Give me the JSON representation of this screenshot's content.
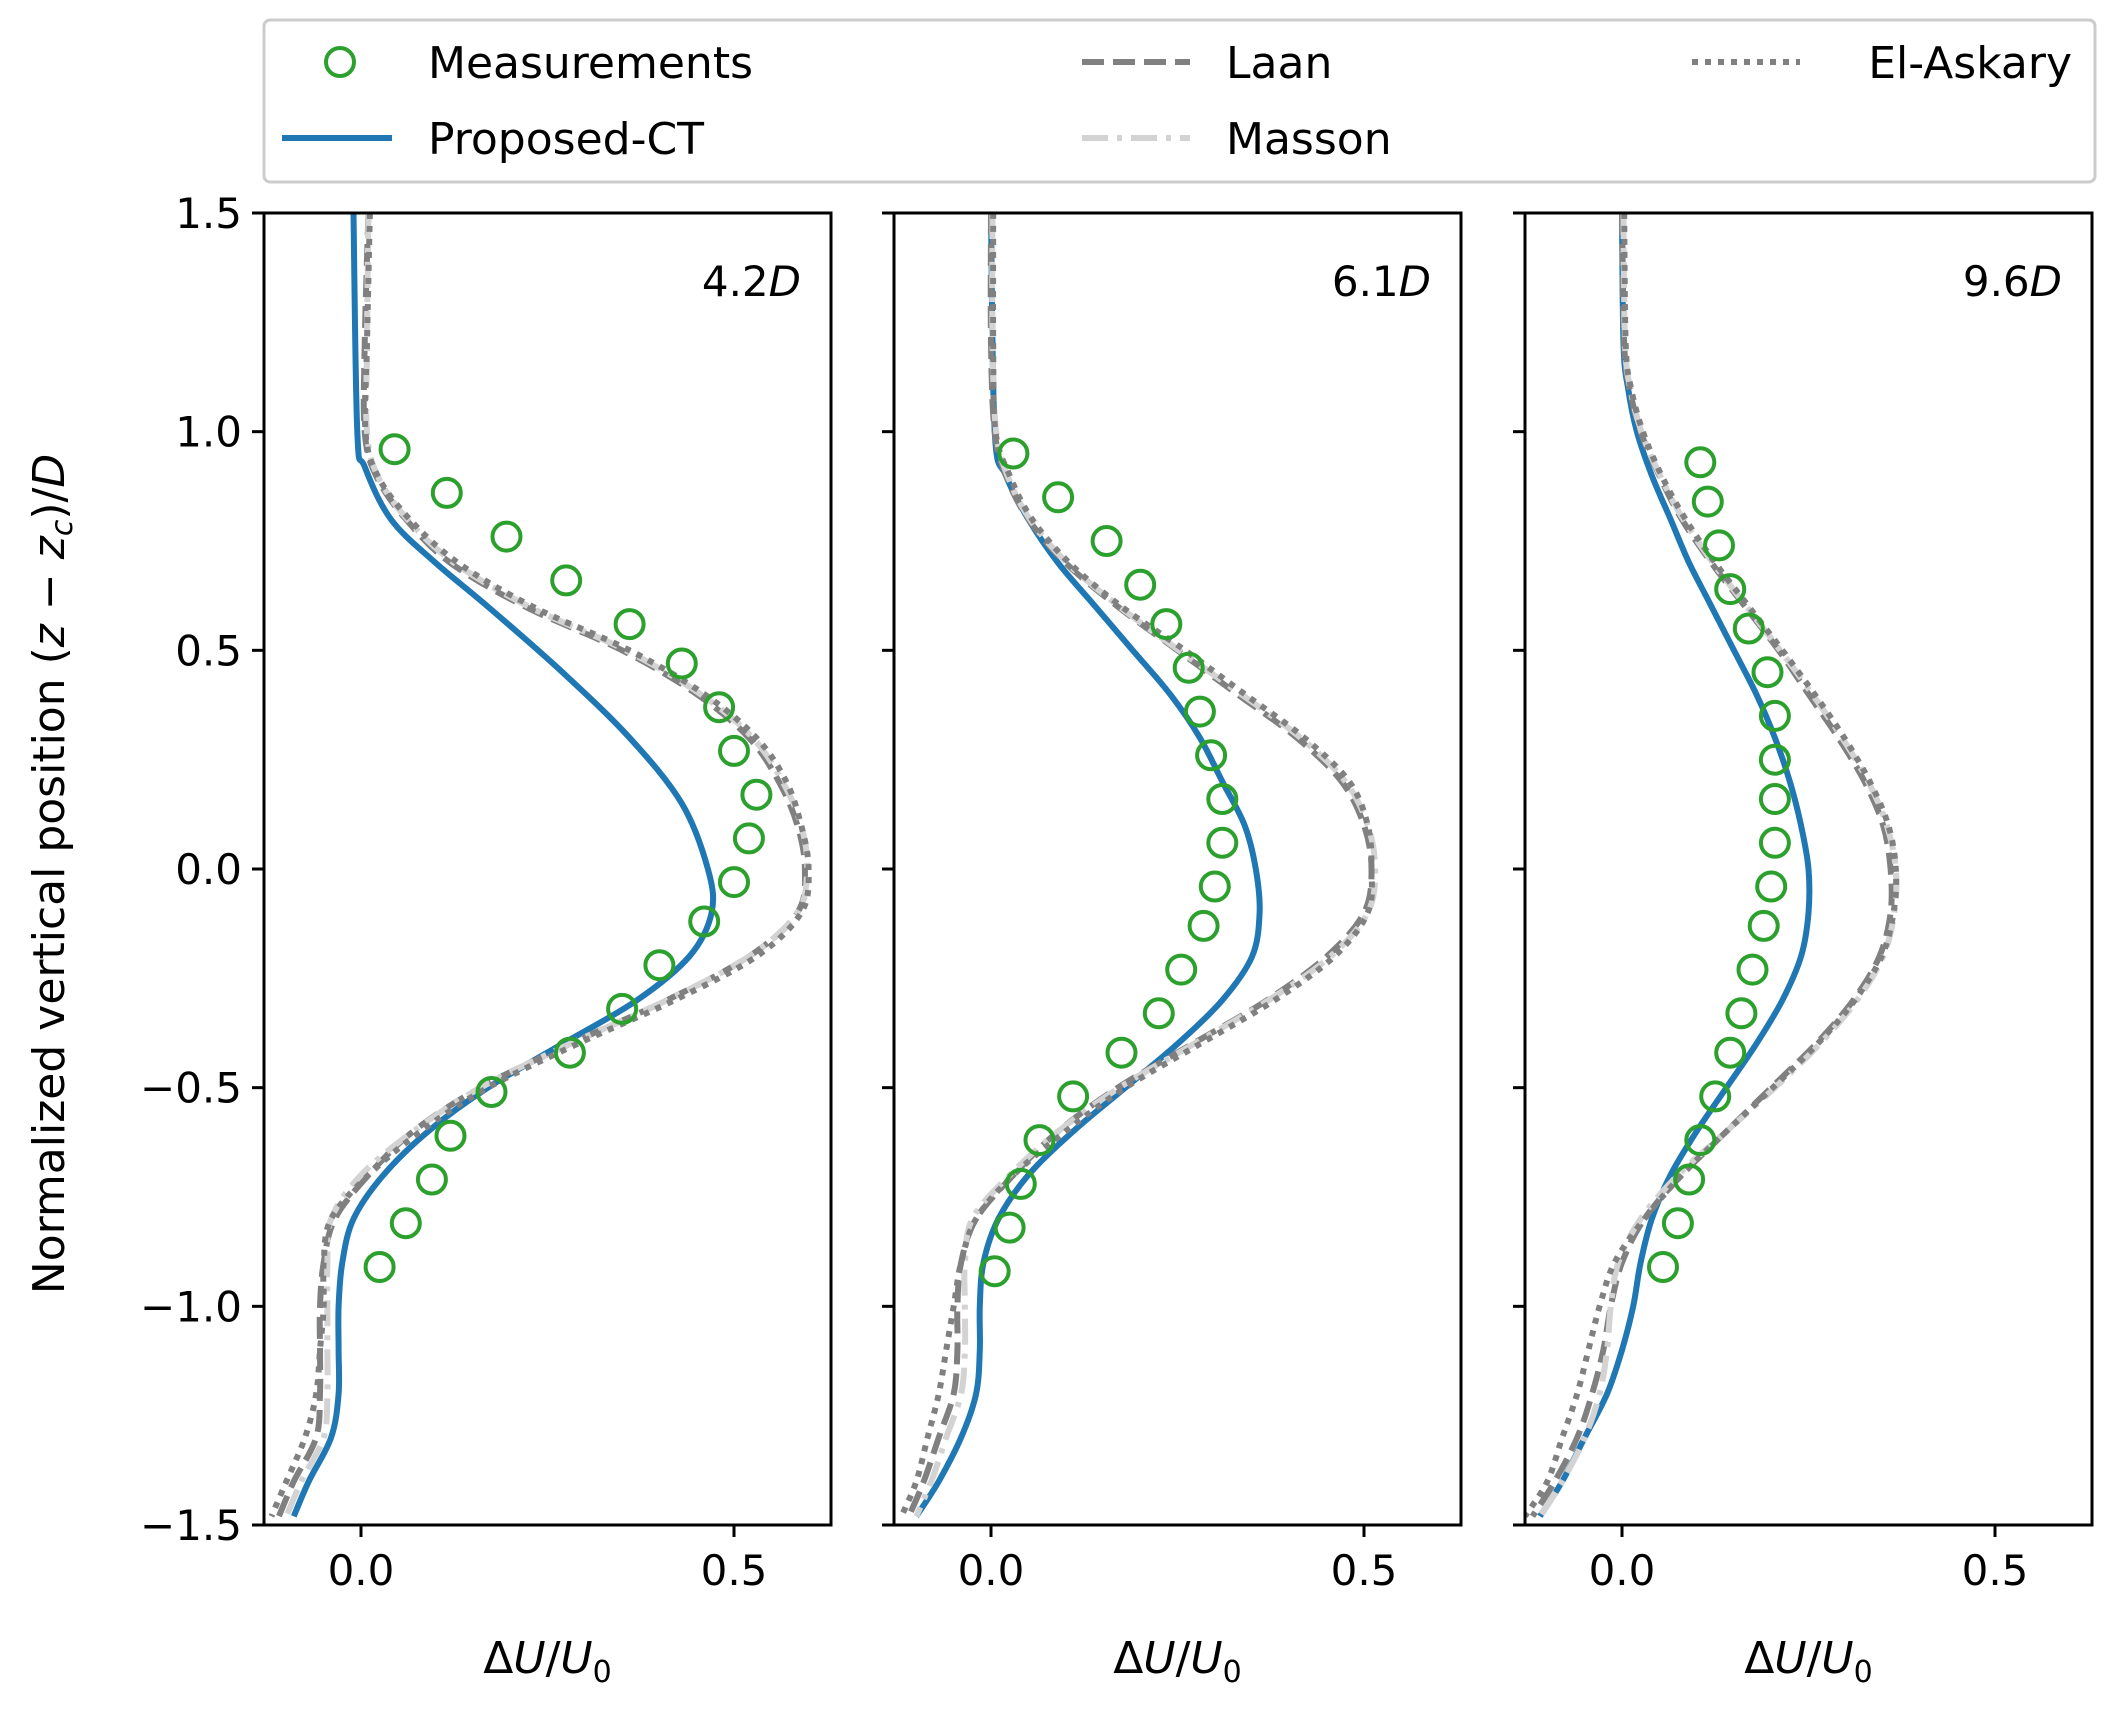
{
  "chart_data": {
    "type": "line",
    "ylabel": "Normalized vertical position $(z-z_c)/D$",
    "xlabel": "ΔU/U₀",
    "ylim": [
      -1.5,
      1.5
    ],
    "xlim": [
      -0.13,
      0.63
    ],
    "yticks": [
      1.5,
      1.0,
      0.5,
      0.0,
      -0.5,
      -1.0,
      -1.5
    ],
    "ytick_labels": [
      "1.5",
      "1.0",
      "0.5",
      "0.0",
      "−0.5",
      "−1.0",
      "−1.5"
    ],
    "xticks": [
      0.0,
      0.5
    ],
    "xtick_labels": [
      "0.0",
      "0.5"
    ],
    "legend": {
      "position": "top",
      "entries": [
        {
          "key": "measurements",
          "label": "Measurements",
          "color": "#2ca02c",
          "style": "circle"
        },
        {
          "key": "proposed",
          "label": "Proposed-CT",
          "color": "#1f77b4",
          "style": "solid"
        },
        {
          "key": "laan",
          "label": "Laan",
          "color": "#808080",
          "style": "dashed"
        },
        {
          "key": "masson",
          "label": "Masson",
          "color": "#d3d3d3",
          "style": "dashdot"
        },
        {
          "key": "elaskary",
          "label": "El-Askary",
          "color": "#808080",
          "style": "dotted"
        }
      ]
    },
    "panels": [
      {
        "label_num": "4.2",
        "label_var": "D",
        "measurements": {
          "x": [
            0.045,
            0.115,
            0.195,
            0.275,
            0.36,
            0.43,
            0.48,
            0.5,
            0.53,
            0.52,
            0.5,
            0.46,
            0.4,
            0.35,
            0.28,
            0.175,
            0.12,
            0.095,
            0.06,
            0.025
          ],
          "y": [
            0.96,
            0.86,
            0.76,
            0.66,
            0.56,
            0.47,
            0.37,
            0.27,
            0.17,
            0.07,
            -0.03,
            -0.12,
            -0.22,
            -0.32,
            -0.42,
            -0.51,
            -0.61,
            -0.71,
            -0.81,
            -0.91
          ]
        },
        "proposed": {
          "y": [
            1.5,
            1.0,
            0.92,
            0.8,
            0.7,
            0.6,
            0.45,
            0.3,
            0.15,
            0.0,
            -0.1,
            -0.2,
            -0.3,
            -0.4,
            -0.5,
            -0.6,
            -0.7,
            -0.8,
            -0.9,
            -1.0,
            -1.1,
            -1.2,
            -1.3,
            -1.4,
            -1.48
          ],
          "x": [
            -0.01,
            -0.005,
            0.005,
            0.04,
            0.1,
            0.17,
            0.27,
            0.36,
            0.43,
            0.465,
            0.47,
            0.44,
            0.37,
            0.27,
            0.17,
            0.09,
            0.03,
            -0.01,
            -0.025,
            -0.03,
            -0.03,
            -0.03,
            -0.04,
            -0.07,
            -0.09
          ]
        },
        "laan": {
          "y": [
            1.5,
            1.2,
            1.0,
            0.9,
            0.8,
            0.7,
            0.6,
            0.5,
            0.4,
            0.3,
            0.2,
            0.1,
            0.0,
            -0.1,
            -0.2,
            -0.3,
            -0.4,
            -0.5,
            -0.6,
            -0.7,
            -0.8,
            -0.9,
            -1.0,
            -1.1,
            -1.2,
            -1.3,
            -1.4,
            -1.48
          ],
          "x": [
            0.01,
            0.005,
            0.005,
            0.02,
            0.06,
            0.12,
            0.22,
            0.35,
            0.45,
            0.52,
            0.56,
            0.585,
            0.595,
            0.585,
            0.52,
            0.41,
            0.28,
            0.16,
            0.07,
            0.01,
            -0.035,
            -0.05,
            -0.055,
            -0.055,
            -0.055,
            -0.06,
            -0.09,
            -0.11
          ]
        },
        "masson": {
          "y": [
            1.5,
            1.2,
            1.0,
            0.9,
            0.8,
            0.7,
            0.6,
            0.5,
            0.4,
            0.3,
            0.2,
            0.1,
            0.0,
            -0.1,
            -0.2,
            -0.3,
            -0.4,
            -0.5,
            -0.6,
            -0.7,
            -0.8,
            -0.9,
            -1.0,
            -1.1,
            -1.2,
            -1.3,
            -1.4,
            -1.48
          ],
          "x": [
            0.01,
            0.008,
            0.008,
            0.022,
            0.062,
            0.125,
            0.225,
            0.355,
            0.455,
            0.525,
            0.565,
            0.59,
            0.598,
            0.585,
            0.52,
            0.41,
            0.28,
            0.16,
            0.07,
            0.0,
            -0.04,
            -0.045,
            -0.045,
            -0.045,
            -0.045,
            -0.05,
            -0.08,
            -0.1
          ]
        },
        "elaskary": {
          "y": [
            1.5,
            1.2,
            1.0,
            0.9,
            0.8,
            0.7,
            0.6,
            0.5,
            0.4,
            0.3,
            0.2,
            0.1,
            0.0,
            -0.1,
            -0.2,
            -0.3,
            -0.4,
            -0.5,
            -0.6,
            -0.7,
            -0.8,
            -0.9,
            -1.0,
            -1.1,
            -1.2,
            -1.3,
            -1.4,
            -1.48
          ],
          "x": [
            0.012,
            0.008,
            0.006,
            0.022,
            0.065,
            0.13,
            0.23,
            0.36,
            0.46,
            0.53,
            0.57,
            0.59,
            0.6,
            0.59,
            0.53,
            0.42,
            0.29,
            0.17,
            0.08,
            0.01,
            -0.04,
            -0.05,
            -0.05,
            -0.055,
            -0.06,
            -0.075,
            -0.1,
            -0.12
          ]
        }
      },
      {
        "label_num": "6.1",
        "label_var": "D",
        "measurements": {
          "x": [
            0.03,
            0.09,
            0.155,
            0.2,
            0.235,
            0.265,
            0.28,
            0.295,
            0.31,
            0.31,
            0.3,
            0.285,
            0.255,
            0.225,
            0.175,
            0.11,
            0.065,
            0.04,
            0.025,
            0.005
          ],
          "y": [
            0.95,
            0.85,
            0.75,
            0.65,
            0.56,
            0.46,
            0.36,
            0.26,
            0.16,
            0.06,
            -0.04,
            -0.13,
            -0.23,
            -0.33,
            -0.42,
            -0.52,
            -0.62,
            -0.72,
            -0.82,
            -0.92
          ]
        },
        "proposed": {
          "y": [
            1.5,
            1.0,
            0.9,
            0.8,
            0.7,
            0.6,
            0.5,
            0.4,
            0.3,
            0.2,
            0.1,
            0.0,
            -0.1,
            -0.2,
            -0.3,
            -0.4,
            -0.5,
            -0.6,
            -0.7,
            -0.8,
            -0.9,
            -1.0,
            -1.1,
            -1.2,
            -1.3,
            -1.4,
            -1.48
          ],
          "x": [
            0.0,
            0.005,
            0.02,
            0.05,
            0.09,
            0.14,
            0.19,
            0.24,
            0.28,
            0.31,
            0.34,
            0.355,
            0.36,
            0.35,
            0.31,
            0.25,
            0.18,
            0.11,
            0.05,
            0.01,
            -0.01,
            -0.015,
            -0.015,
            -0.02,
            -0.04,
            -0.07,
            -0.1
          ]
        },
        "laan": {
          "y": [
            1.5,
            1.2,
            1.0,
            0.9,
            0.8,
            0.7,
            0.6,
            0.5,
            0.4,
            0.3,
            0.2,
            0.1,
            0.0,
            -0.1,
            -0.2,
            -0.3,
            -0.4,
            -0.5,
            -0.6,
            -0.7,
            -0.8,
            -0.9,
            -1.0,
            -1.1,
            -1.2,
            -1.3,
            -1.4,
            -1.48
          ],
          "x": [
            0.0,
            0.0,
            0.005,
            0.02,
            0.05,
            0.1,
            0.17,
            0.25,
            0.33,
            0.41,
            0.47,
            0.5,
            0.51,
            0.5,
            0.45,
            0.37,
            0.27,
            0.17,
            0.09,
            0.03,
            -0.02,
            -0.04,
            -0.045,
            -0.045,
            -0.05,
            -0.07,
            -0.09,
            -0.11
          ]
        },
        "masson": {
          "y": [
            1.5,
            1.2,
            1.0,
            0.9,
            0.8,
            0.7,
            0.6,
            0.5,
            0.4,
            0.3,
            0.2,
            0.1,
            0.0,
            -0.1,
            -0.2,
            -0.3,
            -0.4,
            -0.5,
            -0.6,
            -0.7,
            -0.8,
            -0.9,
            -1.0,
            -1.1,
            -1.2,
            -1.3,
            -1.4,
            -1.48
          ],
          "x": [
            0.002,
            0.002,
            0.007,
            0.022,
            0.052,
            0.102,
            0.172,
            0.252,
            0.335,
            0.415,
            0.475,
            0.505,
            0.515,
            0.505,
            0.455,
            0.372,
            0.272,
            0.172,
            0.09,
            0.025,
            -0.025,
            -0.035,
            -0.035,
            -0.035,
            -0.04,
            -0.06,
            -0.08,
            -0.1
          ]
        },
        "elaskary": {
          "y": [
            1.5,
            1.2,
            1.0,
            0.9,
            0.8,
            0.7,
            0.6,
            0.5,
            0.4,
            0.3,
            0.2,
            0.1,
            0.0,
            -0.1,
            -0.2,
            -0.3,
            -0.4,
            -0.5,
            -0.6,
            -0.7,
            -0.8,
            -0.9,
            -1.0,
            -1.1,
            -1.2,
            -1.3,
            -1.4,
            -1.48
          ],
          "x": [
            0.003,
            0.003,
            0.006,
            0.025,
            0.055,
            0.105,
            0.175,
            0.26,
            0.34,
            0.42,
            0.48,
            0.505,
            0.51,
            0.505,
            0.46,
            0.38,
            0.28,
            0.18,
            0.1,
            0.03,
            -0.02,
            -0.04,
            -0.05,
            -0.06,
            -0.07,
            -0.085,
            -0.1,
            -0.12
          ]
        }
      },
      {
        "label_num": "9.6",
        "label_var": "D",
        "measurements": {
          "x": [
            0.105,
            0.115,
            0.13,
            0.145,
            0.17,
            0.195,
            0.205,
            0.205,
            0.205,
            0.205,
            0.2,
            0.19,
            0.175,
            0.16,
            0.145,
            0.125,
            0.105,
            0.09,
            0.075,
            0.055
          ],
          "y": [
            0.93,
            0.84,
            0.74,
            0.64,
            0.55,
            0.45,
            0.35,
            0.25,
            0.16,
            0.06,
            -0.04,
            -0.13,
            -0.23,
            -0.33,
            -0.42,
            -0.52,
            -0.62,
            -0.71,
            -0.81,
            -0.91
          ]
        },
        "proposed": {
          "y": [
            1.5,
            1.2,
            1.1,
            1.0,
            0.9,
            0.8,
            0.7,
            0.6,
            0.5,
            0.4,
            0.3,
            0.2,
            0.1,
            0.0,
            -0.1,
            -0.2,
            -0.3,
            -0.4,
            -0.5,
            -0.6,
            -0.7,
            -0.8,
            -0.9,
            -1.0,
            -1.1,
            -1.2,
            -1.3,
            -1.4,
            -1.48
          ],
          "x": [
            0.0,
            0.002,
            0.008,
            0.02,
            0.04,
            0.065,
            0.09,
            0.12,
            0.15,
            0.18,
            0.205,
            0.225,
            0.24,
            0.25,
            0.25,
            0.24,
            0.215,
            0.18,
            0.14,
            0.1,
            0.065,
            0.04,
            0.025,
            0.015,
            0.0,
            -0.02,
            -0.05,
            -0.08,
            -0.11
          ]
        },
        "laan": {
          "y": [
            1.5,
            1.2,
            1.1,
            1.0,
            0.9,
            0.8,
            0.7,
            0.6,
            0.5,
            0.4,
            0.3,
            0.2,
            0.1,
            0.0,
            -0.1,
            -0.2,
            -0.3,
            -0.4,
            -0.5,
            -0.6,
            -0.7,
            -0.8,
            -0.9,
            -1.0,
            -1.1,
            -1.2,
            -1.3,
            -1.4,
            -1.48
          ],
          "x": [
            0.0,
            0.003,
            0.01,
            0.025,
            0.05,
            0.08,
            0.12,
            0.165,
            0.21,
            0.25,
            0.29,
            0.325,
            0.35,
            0.36,
            0.36,
            0.345,
            0.31,
            0.26,
            0.2,
            0.14,
            0.08,
            0.03,
            0.0,
            -0.015,
            -0.025,
            -0.04,
            -0.06,
            -0.09,
            -0.12
          ]
        },
        "masson": {
          "y": [
            1.5,
            1.2,
            1.1,
            1.0,
            0.9,
            0.8,
            0.7,
            0.6,
            0.5,
            0.4,
            0.3,
            0.2,
            0.1,
            0.0,
            -0.1,
            -0.2,
            -0.3,
            -0.4,
            -0.5,
            -0.6,
            -0.7,
            -0.8,
            -0.9,
            -1.0,
            -1.1,
            -1.2,
            -1.3,
            -1.4,
            -1.48
          ],
          "x": [
            0.002,
            0.004,
            0.011,
            0.026,
            0.051,
            0.082,
            0.122,
            0.167,
            0.212,
            0.255,
            0.295,
            0.33,
            0.355,
            0.367,
            0.365,
            0.35,
            0.315,
            0.265,
            0.205,
            0.14,
            0.075,
            0.025,
            -0.005,
            -0.015,
            -0.02,
            -0.03,
            -0.05,
            -0.08,
            -0.11
          ]
        },
        "elaskary": {
          "y": [
            1.5,
            1.2,
            1.1,
            1.0,
            0.9,
            0.8,
            0.7,
            0.6,
            0.5,
            0.4,
            0.3,
            0.2,
            0.1,
            0.0,
            -0.1,
            -0.2,
            -0.3,
            -0.4,
            -0.5,
            -0.6,
            -0.7,
            -0.8,
            -0.9,
            -1.0,
            -1.1,
            -1.2,
            -1.3,
            -1.4,
            -1.48
          ],
          "x": [
            0.003,
            0.005,
            0.012,
            0.028,
            0.053,
            0.085,
            0.125,
            0.17,
            0.215,
            0.258,
            0.298,
            0.332,
            0.357,
            0.367,
            0.364,
            0.348,
            0.312,
            0.262,
            0.202,
            0.14,
            0.08,
            0.03,
            -0.01,
            -0.03,
            -0.045,
            -0.06,
            -0.08,
            -0.1,
            -0.13
          ]
        }
      }
    ]
  }
}
